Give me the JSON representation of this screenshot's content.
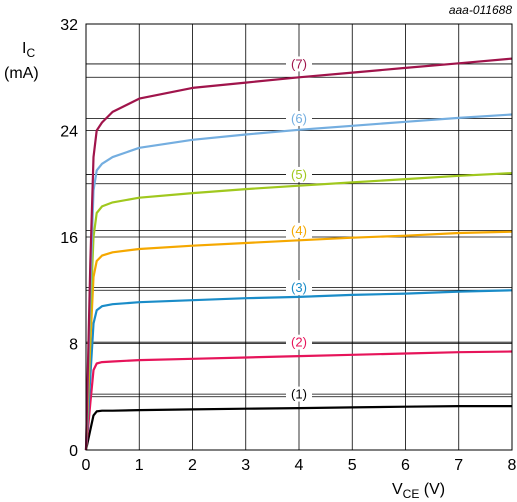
{
  "figure_code": "aaa-011688",
  "chart_data": {
    "type": "line",
    "title": "",
    "xlabel": {
      "main": "V",
      "sub": "CE",
      "unit": " (V)"
    },
    "ylabel": {
      "main": "I",
      "sub": "C",
      "unit": "(mA)"
    },
    "xlim": [
      0,
      8
    ],
    "ylim": [
      0,
      32
    ],
    "x_ticks": [
      0,
      1,
      2,
      3,
      4,
      5,
      6,
      7,
      8
    ],
    "y_ticks": [
      0,
      8,
      16,
      24,
      32
    ],
    "grid": true,
    "legend": "none",
    "series": [
      {
        "name": "(1)",
        "color": "#000000",
        "x": [
          0,
          0.08,
          0.14,
          0.2,
          0.3,
          0.5,
          1,
          2,
          3,
          4,
          5,
          6,
          7,
          8
        ],
        "y": [
          0,
          1.5,
          2.6,
          2.9,
          2.95,
          2.95,
          3.0,
          3.05,
          3.1,
          3.15,
          3.2,
          3.25,
          3.3,
          3.3
        ]
      },
      {
        "name": "(2)",
        "color": "#e6145a",
        "x": [
          0,
          0.08,
          0.14,
          0.2,
          0.3,
          0.5,
          1,
          2,
          3,
          4,
          5,
          6,
          7,
          8
        ],
        "y": [
          0,
          3.5,
          6.0,
          6.5,
          6.6,
          6.65,
          6.75,
          6.85,
          6.95,
          7.05,
          7.15,
          7.25,
          7.35,
          7.4
        ]
      },
      {
        "name": "(3)",
        "color": "#1a8cc8",
        "x": [
          0,
          0.08,
          0.14,
          0.2,
          0.3,
          0.5,
          1,
          2,
          3,
          4,
          5,
          6,
          7,
          8
        ],
        "y": [
          0,
          5.5,
          9.5,
          10.5,
          10.8,
          10.95,
          11.1,
          11.25,
          11.4,
          11.5,
          11.65,
          11.75,
          11.9,
          12.0
        ]
      },
      {
        "name": "(4)",
        "color": "#f5a800",
        "x": [
          0,
          0.08,
          0.14,
          0.2,
          0.3,
          0.5,
          1,
          2,
          3,
          4,
          5,
          6,
          7,
          8
        ],
        "y": [
          0,
          8.0,
          13.0,
          14.2,
          14.6,
          14.85,
          15.1,
          15.35,
          15.55,
          15.75,
          15.95,
          16.1,
          16.3,
          16.4
        ]
      },
      {
        "name": "(5)",
        "color": "#a0c81e",
        "x": [
          0,
          0.08,
          0.14,
          0.2,
          0.3,
          0.5,
          1,
          2,
          3,
          4,
          5,
          6,
          7,
          8
        ],
        "y": [
          0,
          10.0,
          16.0,
          17.8,
          18.3,
          18.6,
          18.95,
          19.3,
          19.6,
          19.85,
          20.1,
          20.35,
          20.6,
          20.8
        ]
      },
      {
        "name": "(6)",
        "color": "#74aee0",
        "x": [
          0,
          0.08,
          0.14,
          0.2,
          0.3,
          0.5,
          1,
          2,
          3,
          4,
          5,
          6,
          7,
          8
        ],
        "y": [
          0,
          12.0,
          19.5,
          21.0,
          21.5,
          22.0,
          22.7,
          23.3,
          23.7,
          24.05,
          24.35,
          24.65,
          24.95,
          25.2
        ]
      },
      {
        "name": "(7)",
        "color": "#a0144b",
        "x": [
          0,
          0.08,
          0.14,
          0.2,
          0.3,
          0.5,
          1,
          2,
          3,
          4,
          5,
          6,
          7,
          8
        ],
        "y": [
          0,
          14.0,
          22.0,
          24.0,
          24.6,
          25.4,
          26.4,
          27.2,
          27.6,
          28.0,
          28.35,
          28.7,
          29.05,
          29.4
        ]
      }
    ],
    "annotations": [
      {
        "text": "(1)",
        "x": 4,
        "y": 4.2,
        "color": "#000000"
      },
      {
        "text": "(2)",
        "x": 4,
        "y": 8.1,
        "color": "#e6145a"
      },
      {
        "text": "(3)",
        "x": 4,
        "y": 12.2,
        "color": "#1a8cc8"
      },
      {
        "text": "(4)",
        "x": 4,
        "y": 16.5,
        "color": "#f5a800"
      },
      {
        "text": "(5)",
        "x": 4,
        "y": 20.7,
        "color": "#a0c81e"
      },
      {
        "text": "(6)",
        "x": 4,
        "y": 24.9,
        "color": "#74aee0"
      },
      {
        "text": "(7)",
        "x": 4,
        "y": 29.0,
        "color": "#a0144b"
      }
    ]
  }
}
